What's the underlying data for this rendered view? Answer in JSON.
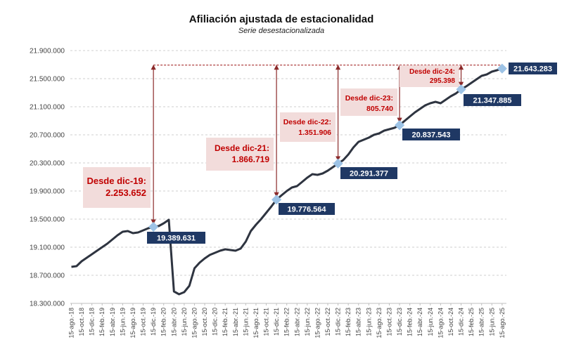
{
  "chart_data": {
    "type": "line",
    "title": "Afiliación ajustada de estacionalidad",
    "subtitle": "Serie desestacionalizada",
    "xlabel": "",
    "ylabel": "",
    "ylim": [
      18300000,
      21900000
    ],
    "yticks": [
      "18.300.000",
      "18.700.000",
      "19.100.000",
      "19.500.000",
      "19.900.000",
      "20.300.000",
      "20.700.000",
      "21.100.000",
      "21.500.000",
      "21.900.000"
    ],
    "ytick_values": [
      18300000,
      18700000,
      19100000,
      19500000,
      19900000,
      20300000,
      20700000,
      21100000,
      21500000,
      21900000
    ],
    "grid": true,
    "line_color": "#2E3440",
    "marker_color": "#9DC3E6",
    "label_bg": "#1F3864",
    "annotation_color": "#C00000",
    "annotation_bg": "#F2DCDB",
    "xtick_labels": [
      "15-ago.-18",
      "15-oct.-18",
      "15-dic.-18",
      "15-feb.-19",
      "15-abr.-19",
      "15-jun.-19",
      "15-ago.-19",
      "15-oct.-19",
      "15-dic.-19",
      "15-feb.-20",
      "15-abr.-20",
      "15-jun.-20",
      "15-ago.-20",
      "15-oct.-20",
      "15-dic.-20",
      "15-feb.-21",
      "15-abr.-21",
      "15-jun.-21",
      "15-ago.-21",
      "15-oct.-21",
      "15-dic.-21",
      "15-feb.-22",
      "15-abr.-22",
      "15-jun.-22",
      "15-ago.-22",
      "15-oct.-22",
      "15-dic.-22",
      "15-feb.-23",
      "15-abr.-23",
      "15-jun.-23",
      "15-ago.-23",
      "15-oct.-23",
      "15-dic.-23",
      "15-feb.-24",
      "15-abr.-24",
      "15-jun.-24",
      "15-ago.-24",
      "15-oct.-24",
      "15-dic.-24",
      "15-feb.-25",
      "15-abr.-25",
      "15-jun.-25",
      "15-ago.-25"
    ],
    "series": [
      {
        "start": "15-ago.-18",
        "frequency": "monthly",
        "values": [
          18820000,
          18830000,
          18900000,
          18950000,
          19000000,
          19050000,
          19100000,
          19150000,
          19210000,
          19270000,
          19320000,
          19330000,
          19300000,
          19310000,
          19340000,
          19370000,
          19389631,
          19400000,
          19440000,
          19490000,
          18470000,
          18430000,
          18460000,
          18550000,
          18800000,
          18880000,
          18940000,
          18990000,
          19020000,
          19050000,
          19070000,
          19060000,
          19050000,
          19080000,
          19180000,
          19330000,
          19420000,
          19500000,
          19590000,
          19680000,
          19776564,
          19840000,
          19900000,
          19950000,
          19970000,
          20030000,
          20090000,
          20140000,
          20130000,
          20150000,
          20190000,
          20240000,
          20291377,
          20340000,
          20420000,
          20520000,
          20600000,
          20630000,
          20660000,
          20700000,
          20720000,
          20760000,
          20780000,
          20800000,
          20837543,
          20900000,
          20960000,
          21020000,
          21070000,
          21120000,
          21150000,
          21170000,
          21150000,
          21200000,
          21250000,
          21290000,
          21347885,
          21390000,
          21440000,
          21490000,
          21540000,
          21560000,
          21600000,
          21620000,
          21643283
        ]
      }
    ],
    "reference_line": {
      "value": 21643283,
      "style": "dashed"
    },
    "point_labels": [
      {
        "date": "15-dic.-19",
        "value": 19389631,
        "label": "19.389.631"
      },
      {
        "date": "15-dic.-21",
        "value": 19776564,
        "label": "19.776.564"
      },
      {
        "date": "15-dic.-22",
        "value": 20291377,
        "label": "20.291.377"
      },
      {
        "date": "15-dic.-23",
        "value": 20837543,
        "label": "20.837.543"
      },
      {
        "date": "15-dic.-24",
        "value": 21347885,
        "label": "21.347.885"
      },
      {
        "date": "15-ago.-25",
        "value": 21643283,
        "label": "21.643.283"
      }
    ],
    "annotations": [
      {
        "line1": "Desde dic-19:",
        "line2": "2.253.652"
      },
      {
        "line1": "Desde dic-21:",
        "line2": "1.866.719"
      },
      {
        "line1": "Desde dic-22:",
        "line2": "1.351.906"
      },
      {
        "line1": "Desde dic-23:",
        "line2": "805.740"
      },
      {
        "line1": "Desde dic-24:",
        "line2": "295.398"
      }
    ]
  }
}
